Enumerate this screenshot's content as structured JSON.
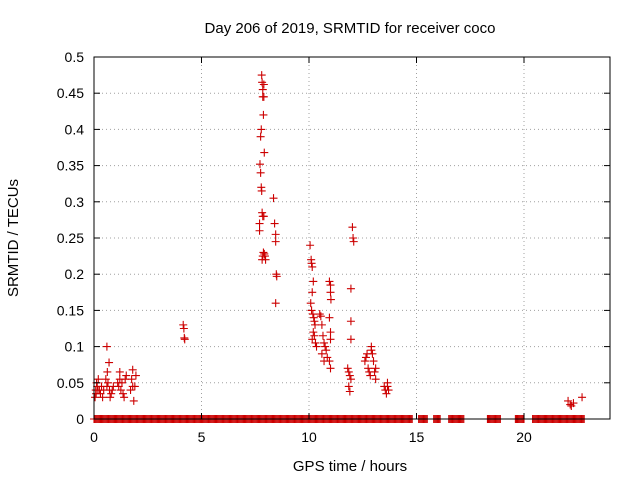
{
  "chart_data": {
    "type": "scatter",
    "title": "Day 206 of 2019, SRMTID for receiver coco",
    "xlabel": "GPS time / hours",
    "ylabel": "SRMTID / TECUs",
    "xlim": [
      0,
      24
    ],
    "ylim": [
      0,
      0.5
    ],
    "xticks": [
      0,
      5,
      10,
      15,
      20
    ],
    "yticks": [
      0,
      0.05,
      0.1,
      0.15,
      0.2,
      0.25,
      0.3,
      0.35,
      0.4,
      0.45,
      0.5
    ],
    "ytick_labels": [
      "0",
      "0.05",
      "0.1",
      "0.15",
      "0.2",
      "0.25",
      "0.3",
      "0.35",
      "0.4",
      "0.45",
      "0.5"
    ],
    "grid": true,
    "marker": "+",
    "color": "#cc0000",
    "zero_value_spans_hours": [
      [
        0,
        14.8
      ],
      [
        15.1,
        15.5
      ],
      [
        15.8,
        16.1
      ],
      [
        16.5,
        17.2
      ],
      [
        18.3,
        18.9
      ],
      [
        19.6,
        20.0
      ],
      [
        20.4,
        22.8
      ]
    ],
    "series": [
      {
        "name": "SRMTID",
        "points": [
          [
            0.05,
            0.03
          ],
          [
            0.08,
            0.04
          ],
          [
            0.1,
            0.035
          ],
          [
            0.12,
            0.05
          ],
          [
            0.15,
            0.045
          ],
          [
            0.18,
            0.04
          ],
          [
            0.2,
            0.055
          ],
          [
            0.25,
            0.04
          ],
          [
            0.3,
            0.035
          ],
          [
            0.35,
            0.045
          ],
          [
            0.4,
            0.03
          ],
          [
            0.45,
            0.04
          ],
          [
            0.55,
            0.055
          ],
          [
            0.6,
            0.045
          ],
          [
            0.6,
            0.1
          ],
          [
            0.62,
            0.065
          ],
          [
            0.65,
            0.05
          ],
          [
            0.7,
            0.078
          ],
          [
            0.72,
            0.04
          ],
          [
            0.75,
            0.03
          ],
          [
            0.8,
            0.035
          ],
          [
            0.85,
            0.04
          ],
          [
            0.9,
            0.045
          ],
          [
            1.1,
            0.05
          ],
          [
            1.15,
            0.045
          ],
          [
            1.2,
            0.055
          ],
          [
            1.2,
            0.065
          ],
          [
            1.25,
            0.04
          ],
          [
            1.3,
            0.05
          ],
          [
            1.35,
            0.035
          ],
          [
            1.4,
            0.03
          ],
          [
            1.45,
            0.055
          ],
          [
            1.5,
            0.06
          ],
          [
            1.7,
            0.04
          ],
          [
            1.75,
            0.055
          ],
          [
            1.8,
            0.045
          ],
          [
            1.8,
            0.068
          ],
          [
            1.85,
            0.025
          ],
          [
            1.9,
            0.045
          ],
          [
            1.95,
            0.06
          ],
          [
            4.15,
            0.13
          ],
          [
            4.18,
            0.125
          ],
          [
            4.2,
            0.112
          ],
          [
            4.22,
            0.11
          ],
          [
            7.7,
            0.27
          ],
          [
            7.7,
            0.26
          ],
          [
            7.72,
            0.352
          ],
          [
            7.75,
            0.39
          ],
          [
            7.75,
            0.34
          ],
          [
            7.78,
            0.4
          ],
          [
            7.78,
            0.32
          ],
          [
            7.8,
            0.475
          ],
          [
            7.8,
            0.315
          ],
          [
            7.82,
            0.465
          ],
          [
            7.82,
            0.285
          ],
          [
            7.82,
            0.22
          ],
          [
            7.85,
            0.455
          ],
          [
            7.85,
            0.445
          ],
          [
            7.85,
            0.28
          ],
          [
            7.85,
            0.225
          ],
          [
            7.88,
            0.42
          ],
          [
            7.88,
            0.23
          ],
          [
            7.9,
            0.445
          ],
          [
            7.9,
            0.462
          ],
          [
            7.9,
            0.28
          ],
          [
            7.92,
            0.368
          ],
          [
            7.92,
            0.228
          ],
          [
            7.95,
            0.225
          ],
          [
            7.98,
            0.22
          ],
          [
            8.35,
            0.305
          ],
          [
            8.4,
            0.27
          ],
          [
            8.45,
            0.255
          ],
          [
            8.45,
            0.245
          ],
          [
            8.48,
            0.2
          ],
          [
            8.5,
            0.197
          ],
          [
            8.45,
            0.16
          ],
          [
            10.05,
            0.24
          ],
          [
            10.1,
            0.22
          ],
          [
            10.12,
            0.215
          ],
          [
            10.15,
            0.21
          ],
          [
            10.2,
            0.19
          ],
          [
            10.15,
            0.175
          ],
          [
            10.08,
            0.16
          ],
          [
            10.12,
            0.15
          ],
          [
            10.18,
            0.145
          ],
          [
            10.22,
            0.14
          ],
          [
            10.25,
            0.135
          ],
          [
            10.28,
            0.13
          ],
          [
            10.2,
            0.12
          ],
          [
            10.25,
            0.115
          ],
          [
            10.15,
            0.11
          ],
          [
            10.3,
            0.105
          ],
          [
            10.35,
            0.1
          ],
          [
            10.5,
            0.145
          ],
          [
            10.55,
            0.142
          ],
          [
            10.6,
            0.13
          ],
          [
            10.65,
            0.115
          ],
          [
            10.7,
            0.105
          ],
          [
            10.75,
            0.1
          ],
          [
            10.8,
            0.095
          ],
          [
            10.85,
            0.085
          ],
          [
            10.6,
            0.09
          ],
          [
            10.7,
            0.08
          ],
          [
            10.95,
            0.19
          ],
          [
            11.0,
            0.185
          ],
          [
            11.0,
            0.175
          ],
          [
            11.02,
            0.165
          ],
          [
            10.95,
            0.14
          ],
          [
            11.0,
            0.12
          ],
          [
            11.0,
            0.11
          ],
          [
            10.95,
            0.08
          ],
          [
            11.0,
            0.07
          ],
          [
            11.8,
            0.07
          ],
          [
            11.85,
            0.065
          ],
          [
            11.9,
            0.06
          ],
          [
            11.95,
            0.055
          ],
          [
            11.85,
            0.045
          ],
          [
            11.9,
            0.038
          ],
          [
            11.95,
            0.18
          ],
          [
            11.95,
            0.135
          ],
          [
            11.95,
            0.11
          ],
          [
            12.02,
            0.265
          ],
          [
            12.05,
            0.25
          ],
          [
            12.08,
            0.245
          ],
          [
            12.6,
            0.08
          ],
          [
            12.65,
            0.085
          ],
          [
            12.7,
            0.09
          ],
          [
            12.75,
            0.07
          ],
          [
            12.8,
            0.065
          ],
          [
            12.85,
            0.06
          ],
          [
            12.9,
            0.1
          ],
          [
            12.9,
            0.095
          ],
          [
            12.95,
            0.09
          ],
          [
            13.0,
            0.08
          ],
          [
            13.05,
            0.065
          ],
          [
            13.1,
            0.07
          ],
          [
            13.1,
            0.055
          ],
          [
            13.5,
            0.045
          ],
          [
            13.55,
            0.04
          ],
          [
            13.6,
            0.035
          ],
          [
            13.65,
            0.05
          ],
          [
            13.65,
            0.045
          ],
          [
            13.7,
            0.04
          ],
          [
            22.05,
            0.025
          ],
          [
            22.15,
            0.02
          ],
          [
            22.2,
            0.018
          ],
          [
            22.3,
            0.022
          ],
          [
            22.7,
            0.03
          ]
        ]
      }
    ]
  }
}
